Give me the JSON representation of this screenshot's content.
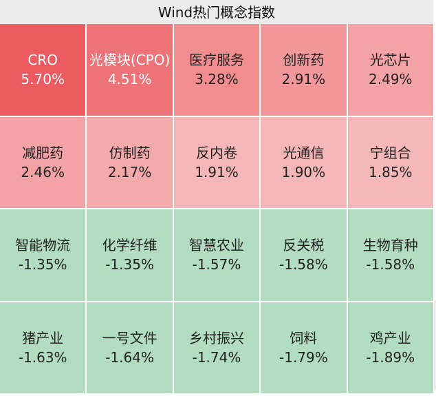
{
  "title": "Wind热门概念指数",
  "tiles": [
    {
      "name": "CRO",
      "pct": "5.70%",
      "bg": "#eb5b60",
      "fg": "#ffffff"
    },
    {
      "name": "光模块(CPO)",
      "pct": "4.51%",
      "bg": "#ee7378",
      "fg": "#ffffff"
    },
    {
      "name": "医疗服务",
      "pct": "3.28%",
      "bg": "#f18c8f",
      "fg": "#222222"
    },
    {
      "name": "创新药",
      "pct": "2.91%",
      "bg": "#f2989b",
      "fg": "#222222"
    },
    {
      "name": "光芯片",
      "pct": "2.49%",
      "bg": "#f3a3a5",
      "fg": "#222222"
    },
    {
      "name": "减肥药",
      "pct": "2.46%",
      "bg": "#f3a3a5",
      "fg": "#222222"
    },
    {
      "name": "仿制药",
      "pct": "2.17%",
      "bg": "#f4a9ab",
      "fg": "#222222"
    },
    {
      "name": "反内卷",
      "pct": "1.91%",
      "bg": "#f5b6b7",
      "fg": "#222222"
    },
    {
      "name": "光通信",
      "pct": "1.90%",
      "bg": "#f5b6b7",
      "fg": "#222222"
    },
    {
      "name": "宁组合",
      "pct": "1.85%",
      "bg": "#f5b8b9",
      "fg": "#222222"
    },
    {
      "name": "智能物流",
      "pct": "-1.35%",
      "bg": "#b3ddc1",
      "fg": "#222222"
    },
    {
      "name": "化学纤维",
      "pct": "-1.35%",
      "bg": "#b3ddc1",
      "fg": "#222222"
    },
    {
      "name": "智慧农业",
      "pct": "-1.57%",
      "bg": "#b3ddc1",
      "fg": "#222222"
    },
    {
      "name": "反关税",
      "pct": "-1.58%",
      "bg": "#b3ddc1",
      "fg": "#222222"
    },
    {
      "name": "生物育种",
      "pct": "-1.58%",
      "bg": "#b3ddc1",
      "fg": "#222222"
    },
    {
      "name": "猪产业",
      "pct": "-1.63%",
      "bg": "#b3ddc1",
      "fg": "#222222"
    },
    {
      "name": "一号文件",
      "pct": "-1.64%",
      "bg": "#b3ddc1",
      "fg": "#222222"
    },
    {
      "name": "乡村振兴",
      "pct": "-1.74%",
      "bg": "#b3ddc1",
      "fg": "#222222"
    },
    {
      "name": "饲料",
      "pct": "-1.79%",
      "bg": "#b3ddc1",
      "fg": "#222222"
    },
    {
      "name": "鸡产业",
      "pct": "-1.89%",
      "bg": "#b3ddc1",
      "fg": "#222222"
    }
  ]
}
